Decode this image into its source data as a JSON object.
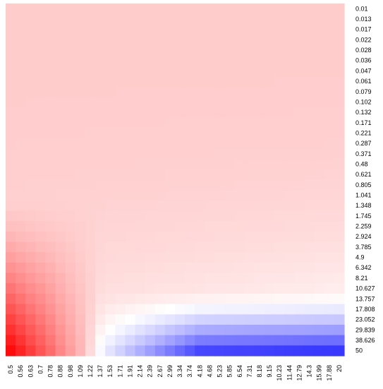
{
  "chart_data": {
    "type": "heatmap",
    "title": "",
    "xlabel": "",
    "ylabel": "",
    "x": [
      "0.5",
      "0.56",
      "0.63",
      "0.7",
      "0.78",
      "0.88",
      "0.98",
      "1.09",
      "1.22",
      "1.37",
      "1.53",
      "1.71",
      "1.91",
      "2.14",
      "2.39",
      "2.67",
      "2.99",
      "3.34",
      "3.74",
      "4.18",
      "4.68",
      "5.23",
      "5.85",
      "6.54",
      "7.31",
      "8.18",
      "9.15",
      "10.23",
      "11.44",
      "12.79",
      "14.3",
      "15.99",
      "17.88",
      "20"
    ],
    "y": [
      "0.01",
      "0.013",
      "0.017",
      "0.022",
      "0.028",
      "0.036",
      "0.047",
      "0.061",
      "0.079",
      "0.102",
      "0.132",
      "0.171",
      "0.221",
      "0.287",
      "0.371",
      "0.48",
      "0.621",
      "0.805",
      "1.041",
      "1.348",
      "1.745",
      "2.259",
      "2.924",
      "3.785",
      "4.9",
      "6.342",
      "8.21",
      "10.627",
      "13.757",
      "17.808",
      "23.052",
      "29.839",
      "38.626",
      "50"
    ],
    "color_scale": {
      "low": "#0000ff",
      "mid": "#ffffff",
      "high": "#ff0000"
    },
    "grid": false,
    "legend": "none"
  }
}
